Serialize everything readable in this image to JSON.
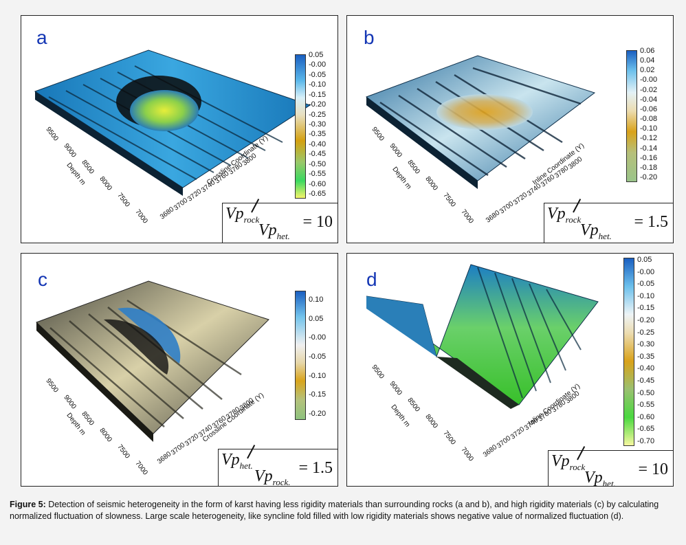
{
  "caption": {
    "label": "Figure 5:",
    "text": "Detection of seismic heterogeneity in the form of karst having less rigidity materials than surrounding rocks (a and b), and high rigidity materials (c) by calculating normalized fluctuation of slowness. Large scale heterogeneity, like syncline fold filled with low rigidity materials shows negative value of normalized fluctuation (d)."
  },
  "panels": [
    {
      "letter": "a",
      "colorbar_ticks": [
        "0.05",
        "-0.00",
        "-0.05",
        "-0.10",
        "-0.15",
        "-0.20",
        "-0.25",
        "-0.30",
        "-0.35",
        "-0.40",
        "-0.45",
        "-0.50",
        "-0.55",
        "-0.60",
        "-0.65"
      ],
      "ratio": {
        "num_main": "Vp",
        "num_sub": "rock",
        "den_main": "Vp",
        "den_sub": "het.",
        "eq": "= 10"
      },
      "axis_x_ticks": [
        "3680",
        "3700",
        "3720",
        "3740",
        "3760",
        "3780",
        "3800"
      ],
      "axis_y_ticks": [
        "7000",
        "7500",
        "8000",
        "8500",
        "9000",
        "9500"
      ],
      "axis_x_label": "Crossline Coordinate (Y)",
      "axis_y_label": "Depth m",
      "colors": {
        "bg": "#1a8fd1",
        "edge": "#0d2a44",
        "hole": "#d8e040"
      }
    },
    {
      "letter": "b",
      "colorbar_ticks": [
        "0.06",
        "0.04",
        "0.02",
        "-0.00",
        "-0.02",
        "-0.04",
        "-0.06",
        "-0.08",
        "-0.10",
        "-0.12",
        "-0.14",
        "-0.16",
        "-0.18",
        "-0.20"
      ],
      "ratio": {
        "num_main": "Vp",
        "num_sub": "rock",
        "den_main": "Vp",
        "den_sub": "het.",
        "eq": "= 1.5"
      },
      "axis_x_ticks": [
        "3680",
        "3700",
        "3720",
        "3740",
        "3760",
        "3780",
        "3800"
      ],
      "axis_y_ticks": [
        "7000",
        "7500",
        "8000",
        "8500",
        "9000",
        "9500"
      ],
      "axis_x_label": "Inline Coordinate (Y)",
      "axis_y_label": "Depth m"
    },
    {
      "letter": "c",
      "colorbar_ticks": [
        "0.10",
        "0.05",
        "-0.00",
        "-0.05",
        "-0.10",
        "-0.15",
        "-0.20"
      ],
      "ratio": {
        "num_main": "Vp",
        "num_sub": "het.",
        "den_main": "Vp",
        "den_sub": "rock.",
        "eq": "= 1.5"
      },
      "axis_x_ticks": [
        "3680",
        "3700",
        "3720",
        "3740",
        "3760",
        "3780",
        "3800"
      ],
      "axis_y_ticks": [
        "7000",
        "7500",
        "8000",
        "8500",
        "9000",
        "9500"
      ],
      "axis_x_label": "Crossline Coordinate (Y)",
      "axis_y_label": "Depth m"
    },
    {
      "letter": "d",
      "colorbar_ticks": [
        "0.05",
        "-0.00",
        "-0.05",
        "-0.10",
        "-0.15",
        "-0.20",
        "-0.25",
        "-0.30",
        "-0.35",
        "-0.40",
        "-0.45",
        "-0.50",
        "-0.55",
        "-0.60",
        "-0.65",
        "-0.70"
      ],
      "ratio": {
        "num_main": "Vp",
        "num_sub": "rock",
        "den_main": "Vp",
        "den_sub": "het.",
        "eq": "= 10"
      },
      "axis_x_ticks": [
        "3680",
        "3700",
        "3720",
        "3740",
        "3760",
        "3780",
        "3800"
      ],
      "axis_y_ticks": [
        "7000",
        "7500",
        "8000",
        "8500",
        "9000",
        "9500"
      ],
      "axis_x_label": "Inline Coordinate (Y)",
      "axis_y_label": "Depth m"
    }
  ]
}
